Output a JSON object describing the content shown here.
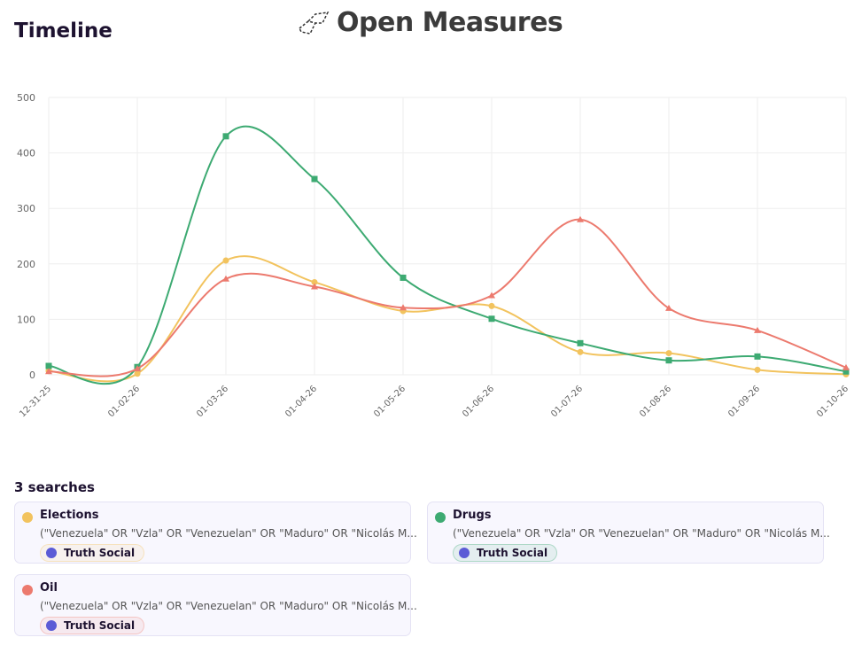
{
  "header": {
    "title": "Timeline",
    "brand": "Open Measures"
  },
  "chart_data": {
    "type": "line",
    "x": [
      "12-31-25",
      "01-02-26",
      "01-03-26",
      "01-04-26",
      "01-05-26",
      "01-06-26",
      "01-07-26",
      "01-08-26",
      "01-09-26",
      "01-10-26"
    ],
    "ylim": [
      0,
      500
    ],
    "yticks": [
      0,
      100,
      200,
      300,
      400,
      500
    ],
    "grid": true,
    "series": [
      {
        "name": "Elections",
        "color": "#f2c35e",
        "marker": "circle",
        "values": [
          7,
          2,
          206,
          167,
          115,
          124,
          41,
          39,
          9,
          1
        ]
      },
      {
        "name": "Drugs",
        "color": "#3daa72",
        "marker": "square",
        "values": [
          16,
          14,
          430,
          353,
          175,
          101,
          57,
          26,
          33,
          6
        ]
      },
      {
        "name": "Oil",
        "color": "#ec7a6e",
        "marker": "triangle",
        "values": [
          6,
          11,
          173,
          159,
          121,
          143,
          280,
          120,
          80,
          13
        ]
      }
    ]
  },
  "searches": {
    "title": "3 searches",
    "items": [
      {
        "query": "(\"Venezuela\" OR \"Vzla\" OR \"Venezuelan\" OR \"Maduro\" OR \"Nicolás M...",
        "platform": "Truth Social"
      },
      {
        "query": "(\"Venezuela\" OR \"Vzla\" OR \"Venezuelan\" OR \"Maduro\" OR \"Nicolás M...",
        "platform": "Truth Social"
      },
      {
        "query": "(\"Venezuela\" OR \"Vzla\" OR \"Venezuelan\" OR \"Maduro\" OR \"Nicolás M...",
        "platform": "Truth Social"
      }
    ]
  }
}
